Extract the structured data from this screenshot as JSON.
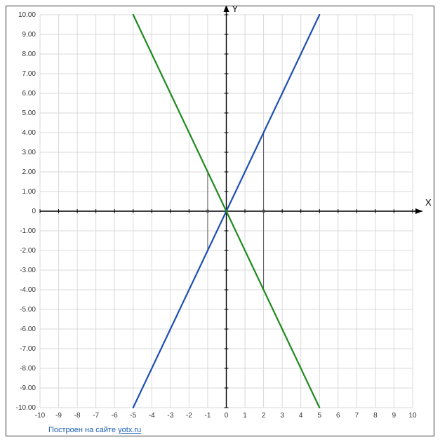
{
  "chart": {
    "type": "line",
    "background_color": "#ffffff",
    "grid_color": "#d9d9d9",
    "axis_color": "#000000",
    "tick_label_color": "#333333",
    "tick_font_size": 10,
    "axis_label_font_size": 13,
    "xlim": [
      -10,
      10
    ],
    "ylim": [
      -10,
      10
    ],
    "xtick_step": 1,
    "ytick_step": 1,
    "x_tick_labels": [
      "-10",
      "-9",
      "-8",
      "-7",
      "-6",
      "-5",
      "-4",
      "-3",
      "-2",
      "-1",
      "0",
      "1",
      "2",
      "3",
      "4",
      "5",
      "6",
      "7",
      "8",
      "9",
      "10"
    ],
    "y_tick_labels": [
      "-10.00",
      "-9.00",
      "-8.00",
      "-7.00",
      "-6.00",
      "-5.00",
      "-4.00",
      "-3.00",
      "-2.00",
      "-1.00",
      "0",
      "1.00",
      "2.00",
      "3.00",
      "4.00",
      "5.00",
      "6.00",
      "7.00",
      "8.00",
      "9.00",
      "10.00"
    ],
    "x_axis_label": "X",
    "y_axis_label": "Y",
    "series": [
      {
        "name": "line-blue",
        "color": "#1f4fb3",
        "width": 2.2,
        "p1": [
          -5,
          -10
        ],
        "p2": [
          5,
          10
        ]
      },
      {
        "name": "line-green",
        "color": "#1e8a1e",
        "width": 2.2,
        "p1": [
          -5,
          10
        ],
        "p2": [
          5,
          -10
        ]
      }
    ],
    "markers": [
      {
        "type": "vline",
        "x": -1,
        "y1": -2,
        "y2": 2,
        "color": "#555555",
        "width": 1
      },
      {
        "type": "vline",
        "x": 2,
        "y1": -4,
        "y2": 4,
        "color": "#555555",
        "width": 1
      },
      {
        "type": "dot",
        "x": -1,
        "y": 0,
        "r": 2,
        "color": "#555555"
      },
      {
        "type": "dot",
        "x": 2,
        "y": 0,
        "r": 2,
        "color": "#555555"
      },
      {
        "type": "dot",
        "x": 0,
        "y": 0,
        "r": 2,
        "color": "#555555"
      }
    ]
  },
  "footer": {
    "text_prefix": "Построен на сайте ",
    "link_text": "yotx.ru"
  }
}
